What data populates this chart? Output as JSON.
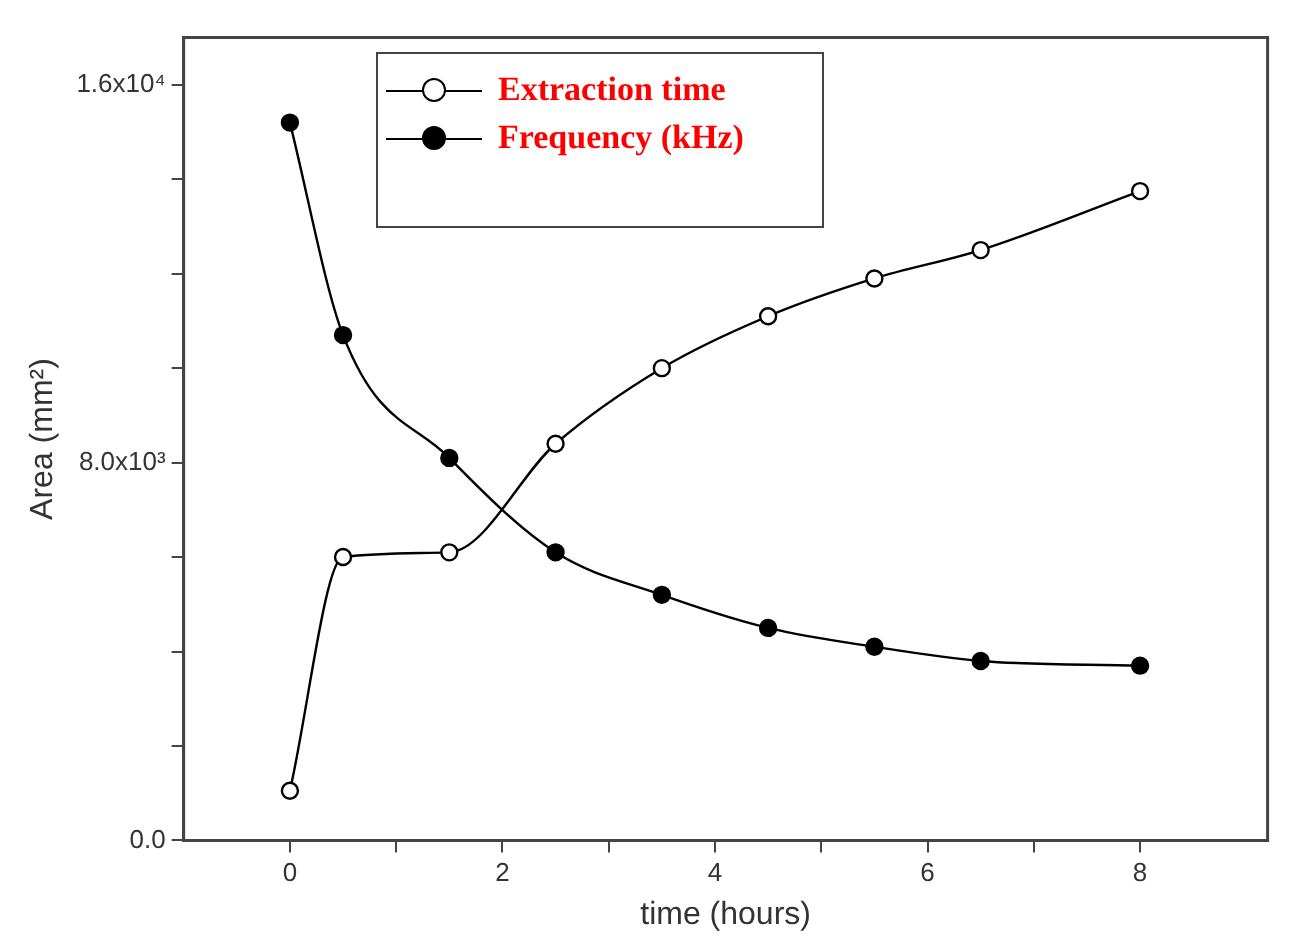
{
  "chart_data": {
    "type": "line",
    "xlabel": "time (hours)",
    "ylabel": "Area (mm²)",
    "x": [
      0,
      0.5,
      1.5,
      2.5,
      3.5,
      4.5,
      5.5,
      6.5,
      8
    ],
    "series": [
      {
        "name": "Extraction time",
        "color": "#000000",
        "values": [
          1050,
          6000,
          6100,
          8400,
          10000,
          11100,
          11900,
          12500,
          13750
        ]
      },
      {
        "name": "Frequency (kHz)",
        "color": "#000000",
        "values": [
          15200,
          10700,
          8100,
          6100,
          5200,
          4500,
          4100,
          3800,
          3700
        ]
      }
    ],
    "xlim": [
      -1,
      9.2
    ],
    "xticks": [
      0,
      {
        "value": 1,
        "label": null
      },
      2,
      {
        "value": 3,
        "label": null
      },
      4,
      {
        "value": 5,
        "label": null
      },
      6,
      {
        "value": 7,
        "label": null
      },
      8
    ],
    "ylim": [
      0,
      17000
    ],
    "yticks": [
      {
        "value": 0,
        "label": "0.0"
      },
      {
        "value": 2000,
        "label": null
      },
      {
        "value": 4000,
        "label": null
      },
      {
        "value": 6000,
        "label": null
      },
      {
        "value": 8000,
        "label": "8.0x10³"
      },
      {
        "value": 10000,
        "label": null
      },
      {
        "value": 12000,
        "label": null
      },
      {
        "value": 14000,
        "label": null
      },
      {
        "value": 16000,
        "label": "1.6x10⁴"
      }
    ],
    "grid": false,
    "legend": "top",
    "marker": "circle",
    "line_style": "solid"
  }
}
